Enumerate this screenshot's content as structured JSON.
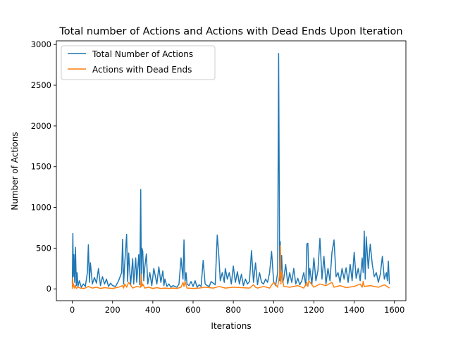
{
  "chart_data": {
    "type": "line",
    "title": "Total number of Actions and Actions with Dead Ends Upon Iteration",
    "xlabel": "Iterations",
    "ylabel": "Number of Actions",
    "xlim": [
      -79,
      1657
    ],
    "ylim": [
      -145,
      3045
    ],
    "xticks": [
      0,
      200,
      400,
      600,
      800,
      1000,
      1200,
      1400,
      1600
    ],
    "yticks": [
      0,
      500,
      1000,
      1500,
      2000,
      2500,
      3000
    ],
    "grid": false,
    "legend_position": "upper-left",
    "series": [
      {
        "name": "Total Number of Actions",
        "color": "#1f77b4",
        "x": [
          0,
          3,
          5,
          8,
          12,
          16,
          20,
          24,
          28,
          35,
          45,
          55,
          65,
          75,
          80,
          85,
          90,
          100,
          110,
          120,
          130,
          140,
          150,
          160,
          170,
          180,
          190,
          200,
          215,
          230,
          245,
          250,
          255,
          260,
          270,
          275,
          280,
          290,
          300,
          305,
          315,
          320,
          330,
          335,
          340,
          343,
          346,
          350,
          355,
          360,
          368,
          375,
          385,
          395,
          405,
          420,
          430,
          440,
          450,
          455,
          460,
          470,
          480,
          490,
          500,
          510,
          520,
          530,
          540,
          550,
          555,
          560,
          565,
          570,
          580,
          590,
          600,
          610,
          620,
          630,
          640,
          650,
          660,
          670,
          680,
          690,
          700,
          710,
          720,
          728,
          735,
          745,
          755,
          760,
          770,
          780,
          790,
          800,
          810,
          820,
          830,
          840,
          850,
          860,
          870,
          880,
          890,
          900,
          910,
          920,
          930,
          940,
          950,
          960,
          970,
          980,
          990,
          1000,
          1010,
          1020,
          1025,
          1030,
          1033,
          1036,
          1040,
          1045,
          1050,
          1060,
          1070,
          1080,
          1090,
          1100,
          1110,
          1120,
          1130,
          1140,
          1150,
          1160,
          1165,
          1170,
          1175,
          1180,
          1190,
          1200,
          1210,
          1220,
          1230,
          1240,
          1250,
          1260,
          1270,
          1280,
          1290,
          1300,
          1310,
          1320,
          1330,
          1340,
          1350,
          1360,
          1370,
          1380,
          1390,
          1400,
          1410,
          1420,
          1430,
          1440,
          1445,
          1450,
          1455,
          1460,
          1470,
          1480,
          1490,
          1500,
          1510,
          1520,
          1530,
          1540,
          1550,
          1560,
          1565,
          1570,
          1575
        ],
        "values": [
          60,
          680,
          150,
          420,
          80,
          510,
          40,
          200,
          30,
          100,
          20,
          60,
          30,
          200,
          540,
          80,
          320,
          60,
          140,
          70,
          250,
          40,
          150,
          60,
          120,
          30,
          70,
          40,
          30,
          100,
          200,
          610,
          60,
          300,
          670,
          90,
          440,
          50,
          370,
          60,
          380,
          80,
          420,
          50,
          1220,
          90,
          500,
          460,
          100,
          260,
          430,
          60,
          200,
          40,
          250,
          60,
          270,
          80,
          220,
          40,
          120,
          30,
          60,
          20,
          40,
          30,
          20,
          60,
          380,
          120,
          600,
          80,
          200,
          60,
          40,
          90,
          30,
          100,
          20,
          50,
          30,
          350,
          60,
          40,
          30,
          90,
          70,
          50,
          660,
          400,
          100,
          200,
          80,
          250,
          120,
          200,
          60,
          280,
          80,
          210,
          60,
          180,
          40,
          120,
          60,
          90,
          470,
          80,
          320,
          50,
          200,
          80,
          60,
          120,
          80,
          200,
          460,
          90,
          40,
          200,
          2890,
          100,
          580,
          200,
          410,
          80,
          120,
          300,
          60,
          200,
          80,
          250,
          60,
          130,
          50,
          100,
          200,
          40,
          550,
          560,
          100,
          250,
          60,
          380,
          100,
          220,
          620,
          120,
          400,
          60,
          250,
          100,
          450,
          600,
          150,
          200,
          80,
          250,
          120,
          260,
          80,
          300,
          100,
          450,
          130,
          250,
          100,
          380,
          200,
          710,
          120,
          640,
          250,
          550,
          300,
          150,
          200,
          80,
          180,
          400,
          120,
          200,
          100,
          340,
          60
        ]
      },
      {
        "name": "Actions with Dead Ends",
        "color": "#ff7f0e",
        "x": [
          0,
          2,
          4,
          6,
          10,
          15,
          20,
          30,
          40,
          60,
          80,
          100,
          120,
          140,
          160,
          180,
          200,
          230,
          250,
          255,
          260,
          270,
          280,
          300,
          320,
          340,
          343,
          346,
          350,
          360,
          380,
          400,
          420,
          440,
          460,
          480,
          500,
          520,
          540,
          550,
          555,
          560,
          570,
          600,
          630,
          660,
          700,
          730,
          760,
          800,
          840,
          880,
          900,
          910,
          920,
          950,
          980,
          1000,
          1020,
          1030,
          1033,
          1036,
          1040,
          1050,
          1080,
          1120,
          1150,
          1165,
          1170,
          1175,
          1200,
          1230,
          1260,
          1290,
          1300,
          1330,
          1360,
          1400,
          1430,
          1440,
          1445,
          1450,
          1480,
          1520,
          1550,
          1575
        ],
        "values": [
          0,
          130,
          30,
          60,
          10,
          40,
          5,
          20,
          10,
          5,
          30,
          10,
          20,
          5,
          15,
          10,
          5,
          20,
          40,
          10,
          60,
          20,
          80,
          10,
          30,
          20,
          180,
          30,
          60,
          10,
          20,
          5,
          15,
          5,
          10,
          5,
          10,
          5,
          20,
          80,
          30,
          90,
          10,
          5,
          10,
          20,
          10,
          30,
          10,
          20,
          15,
          10,
          50,
          20,
          10,
          30,
          10,
          80,
          20,
          180,
          530,
          60,
          200,
          30,
          20,
          40,
          10,
          80,
          30,
          100,
          20,
          60,
          40,
          80,
          20,
          40,
          15,
          30,
          60,
          20,
          90,
          30,
          40,
          20,
          50,
          10
        ]
      }
    ]
  }
}
